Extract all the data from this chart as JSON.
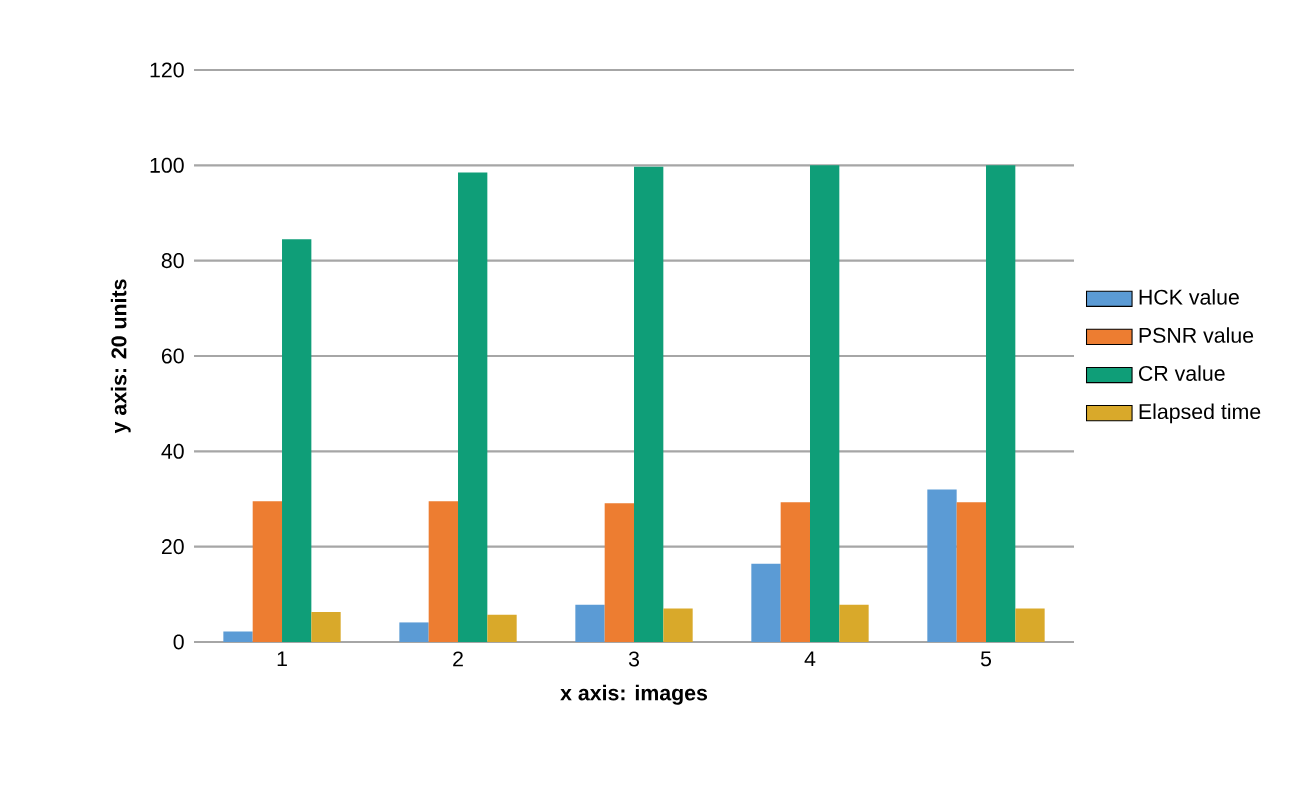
{
  "chart_data": {
    "type": "bar",
    "xlabel": "x axis: images",
    "ylabel": "y axis: 20 units",
    "categories": [
      "1",
      "2",
      "3",
      "4",
      "5"
    ],
    "series": [
      {
        "name": "HCK value",
        "color": "#5b9bd5",
        "values": [
          2.2,
          4.1,
          7.8,
          16.4,
          32
        ]
      },
      {
        "name": "PSNR value",
        "color": "#ed7d31",
        "values": [
          29.5,
          29.5,
          29.1,
          29.3,
          29.3
        ]
      },
      {
        "name": "CR value",
        "color": "#0f9e78",
        "values": [
          84.5,
          98.5,
          99.7,
          100,
          100
        ]
      },
      {
        "name": "Elapsed time",
        "color": "#d9a92a",
        "values": [
          6.3,
          5.7,
          7.0,
          7.8,
          7.0
        ]
      }
    ],
    "ylim": [
      0,
      120
    ],
    "yticks": [
      0,
      20,
      40,
      60,
      80,
      100,
      120
    ],
    "grid": "y",
    "legend": "right"
  }
}
